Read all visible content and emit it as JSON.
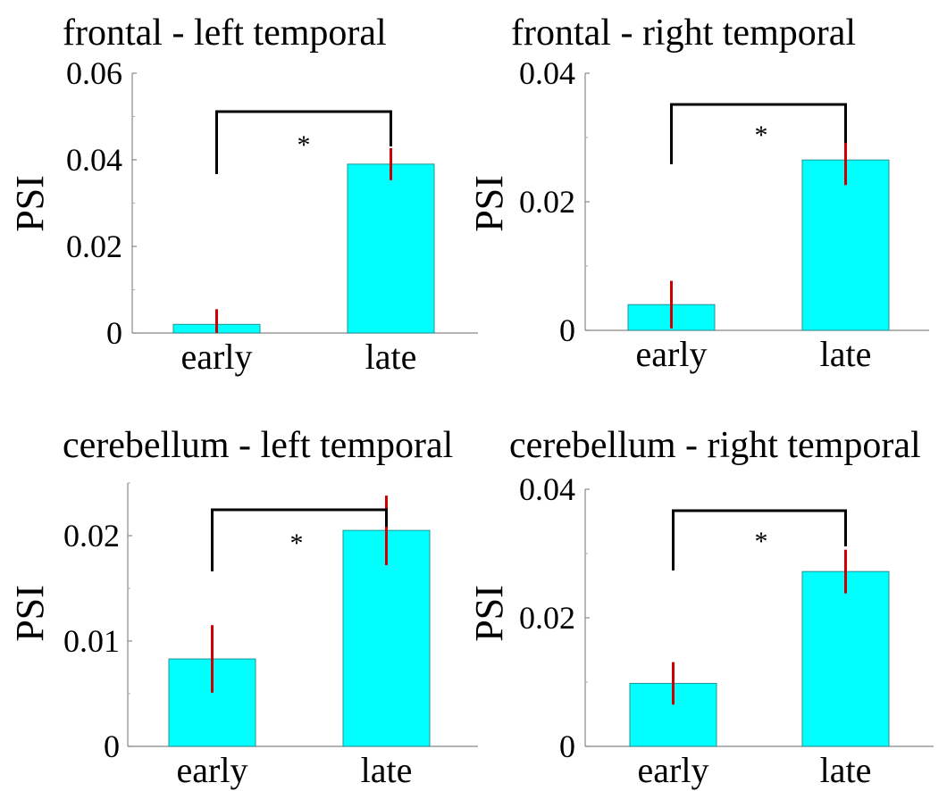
{
  "chart_data": [
    {
      "type": "bar",
      "title": "frontal - left temporal",
      "ylabel": "PSI",
      "categories": [
        "early",
        "late"
      ],
      "values": [
        0.002,
        0.039
      ],
      "errors": [
        0.0035,
        0.0037
      ],
      "ylim": [
        0,
        0.06
      ],
      "yticks": [
        0,
        0.02,
        0.04,
        0.06
      ],
      "ytick_labels": [
        "0",
        "0.02",
        "0.04",
        "0.06"
      ],
      "minor_yticks": [
        0.01,
        0.03,
        0.05
      ],
      "significance": "*",
      "colors": {
        "bar": "#00ffff",
        "error": "#cc0000",
        "bracket": "#000000"
      }
    },
    {
      "type": "bar",
      "title": "frontal - right temporal",
      "ylabel": "PSI",
      "categories": [
        "early",
        "late"
      ],
      "values": [
        0.004,
        0.0265
      ],
      "errors": [
        0.0037,
        0.0039
      ],
      "ylim": [
        0,
        0.04
      ],
      "yticks": [
        0,
        0.02,
        0.04
      ],
      "ytick_labels": [
        "0",
        "0.02",
        "0.04"
      ],
      "minor_yticks": [
        0.01,
        0.03
      ],
      "significance": "*",
      "colors": {
        "bar": "#00ffff",
        "error": "#cc0000",
        "bracket": "#000000"
      }
    },
    {
      "type": "bar",
      "title": "cerebellum - left temporal",
      "ylabel": "PSI",
      "categories": [
        "early",
        "late"
      ],
      "values": [
        0.0083,
        0.0205
      ],
      "errors": [
        0.0032,
        0.0033
      ],
      "ylim": [
        0,
        0.025
      ],
      "yticks": [
        0,
        0.01,
        0.02
      ],
      "ytick_labels": [
        "0",
        "0.01",
        "0.02"
      ],
      "minor_yticks": [
        0.005,
        0.015,
        0.025
      ],
      "significance": "*",
      "colors": {
        "bar": "#00ffff",
        "error": "#cc0000",
        "bracket": "#000000"
      }
    },
    {
      "type": "bar",
      "title": "cerebellum - right temporal",
      "ylabel": "PSI",
      "categories": [
        "early",
        "late"
      ],
      "values": [
        0.0098,
        0.0272
      ],
      "errors": [
        0.0033,
        0.0034
      ],
      "ylim": [
        0,
        0.04
      ],
      "yticks": [
        0,
        0.02,
        0.04
      ],
      "ytick_labels": [
        "0",
        "0.02",
        "0.04"
      ],
      "minor_yticks": [
        0.01,
        0.03
      ],
      "significance": "*",
      "colors": {
        "bar": "#00ffff",
        "error": "#cc0000",
        "bracket": "#000000"
      }
    }
  ]
}
